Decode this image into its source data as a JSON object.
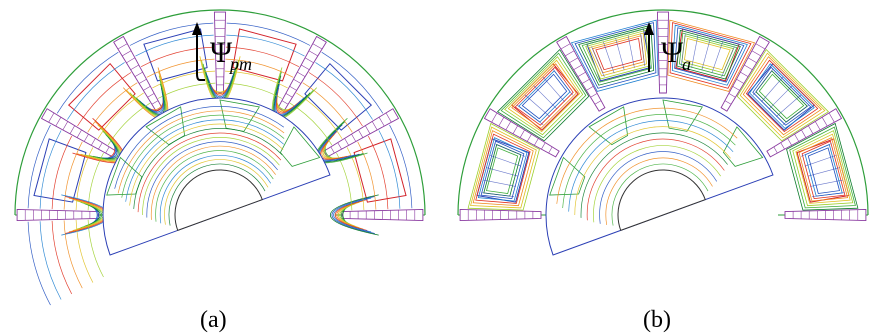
{
  "panels": [
    {
      "id": "a",
      "caption": "(a)",
      "flux_symbol": "Ψ",
      "flux_subscript": "pm"
    },
    {
      "id": "b",
      "caption": "(b)",
      "flux_symbol": "Ψ",
      "flux_subscript": "a"
    }
  ],
  "colors": {
    "outline": "#2e9e3a",
    "magnet": "#8a3aa0",
    "winding_red": "#d2232a",
    "winding_blue": "#2b3fb5",
    "flux_palette": [
      "#0a7a2a",
      "#3fae3a",
      "#9ccf2a",
      "#e0c020",
      "#f08a1c",
      "#e0301e",
      "#1e7fd0",
      "#2050c0"
    ]
  }
}
